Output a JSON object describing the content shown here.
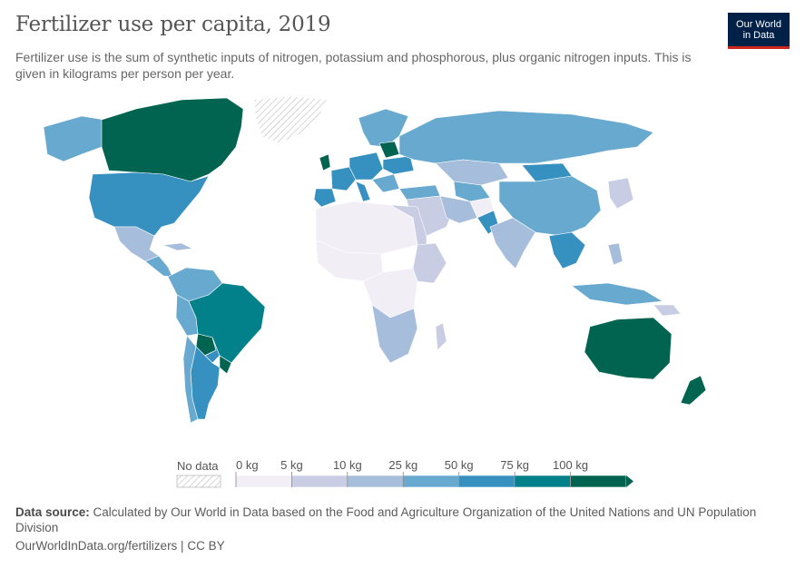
{
  "header": {
    "title": "Fertilizer use per capita, 2019",
    "subtitle": "Fertilizer use is the sum of synthetic inputs of nitrogen, potassium and phosphorous, plus organic nitrogen inputs. This is given in kilograms per person per year."
  },
  "logo": {
    "line1": "Our World",
    "line2": "in Data"
  },
  "legend": {
    "no_data": "No data",
    "ticks": [
      "0 kg",
      "5 kg",
      "10 kg",
      "25 kg",
      "50 kg",
      "75 kg",
      "100 kg"
    ],
    "colors": [
      "#f1eef6",
      "#c9cde4",
      "#a6bddb",
      "#67a9cf",
      "#3690c0",
      "#02818a",
      "#016450"
    ]
  },
  "footer": {
    "source_label": "Data source:",
    "source_text": "Calculated by Our World in Data based on the Food and Agriculture Organization of the United Nations and UN Population Division",
    "url": "OurWorldInData.org/fertilizers | CC BY"
  }
}
